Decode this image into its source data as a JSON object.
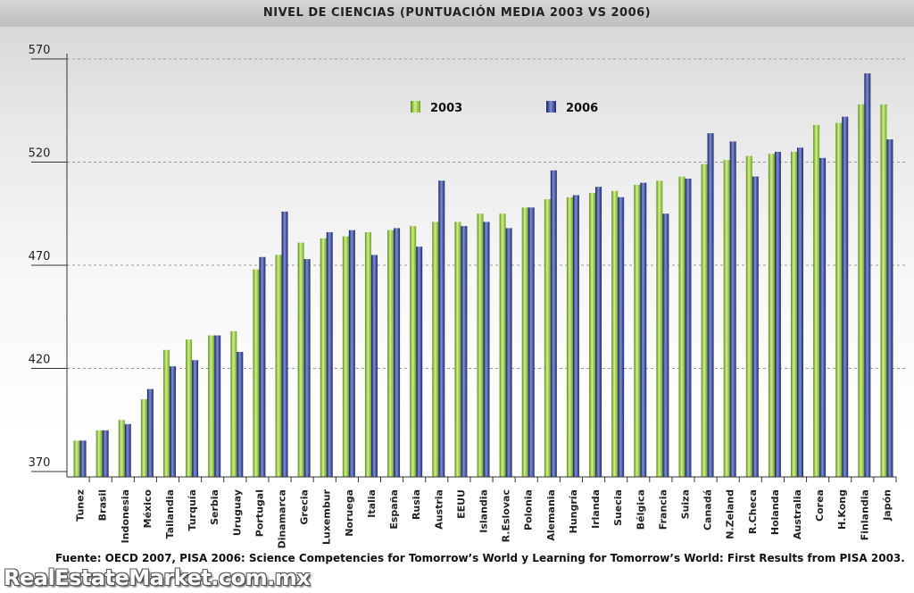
{
  "title": "NIVEL DE CIENCIAS (PUNTUACIÓN MEDIA 2003 VS 2006)",
  "source": "Fuente: OECD 2007, PISA 2006: Science Competencies for Tomorrow’s World y Learning for Tomorrow’s World: First Results from PISA 2003.",
  "watermark": "RealEstateMarket.com.mx",
  "colors": {
    "s2003": "#8cc63f",
    "s2006": "#2b3a8c",
    "grid": "#999999"
  },
  "chart_data": {
    "type": "bar",
    "categories": [
      "Tunez",
      "Brasil",
      "Indonesia",
      "México",
      "Tailandia",
      "Turquía",
      "Serbia",
      "Uruguay",
      "Portugal",
      "Dinamarca",
      "Grecia",
      "Luxembur",
      "Noruega",
      "Italia",
      "España",
      "Rusia",
      "Austria",
      "EEUU",
      "Islandia",
      "R.Eslovac",
      "Polonia",
      "Alemania",
      "Hungría",
      "Irlanda",
      "Suecia",
      "Bélgica",
      "Francia",
      "Suiza",
      "Canadá",
      "N.Zeland",
      "R.Checa",
      "Holanda",
      "Australia",
      "Corea",
      "H.Kong",
      "Finlandia",
      "Japón"
    ],
    "series": [
      {
        "name": "2003",
        "values": [
          385,
          390,
          395,
          405,
          429,
          434,
          436,
          438,
          468,
          475,
          481,
          483,
          484,
          486,
          487,
          489,
          491,
          491,
          495,
          495,
          498,
          502,
          503,
          505,
          506,
          509,
          511,
          513,
          519,
          521,
          523,
          524,
          525,
          538,
          539,
          548,
          548
        ]
      },
      {
        "name": "2006",
        "values": [
          385,
          390,
          393,
          410,
          421,
          424,
          436,
          428,
          474,
          496,
          473,
          486,
          487,
          475,
          488,
          479,
          511,
          489,
          491,
          488,
          498,
          516,
          504,
          508,
          503,
          510,
          495,
          512,
          534,
          530,
          513,
          525,
          527,
          522,
          542,
          563,
          531
        ]
      }
    ],
    "ylim": [
      370,
      570
    ],
    "yticks": [
      370,
      420,
      470,
      520,
      570
    ],
    "grid": true,
    "legend": "top-center"
  }
}
